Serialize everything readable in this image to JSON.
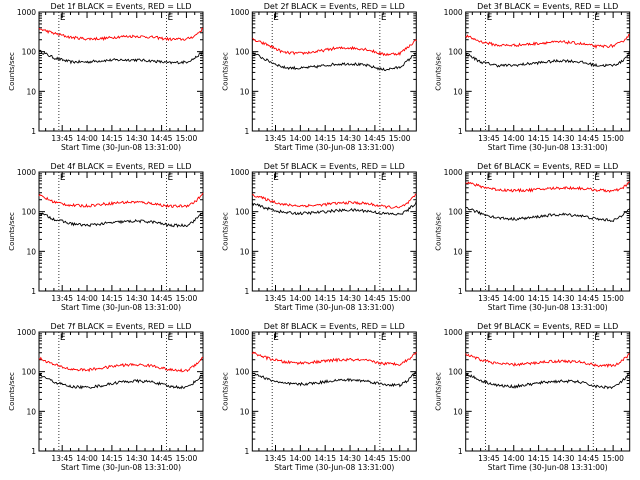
{
  "layout": {
    "rows": 3,
    "cols": 3
  },
  "shared": {
    "xlabel": "Start Time (30-Jun-08 13:31:00)",
    "ylabel": "Counts/sec",
    "xticks": [
      "13:45",
      "14:00",
      "14:15",
      "14:30",
      "14:45",
      "15:00"
    ],
    "yticks": [
      "1",
      "10",
      "100",
      "1000"
    ],
    "marker_label": "E",
    "marker_times": [
      "13:43",
      "14:48"
    ]
  },
  "colors": {
    "events": "#000000",
    "lld": "#ff0000",
    "axis": "#000000",
    "marker": "#000000"
  },
  "chart_data": [
    {
      "type": "line",
      "title": "Det 1f BLACK = Events, RED = LLD",
      "x_range": [
        "13:31",
        "15:10"
      ],
      "yscale": "log",
      "ylim": [
        1,
        1000
      ],
      "grid": false,
      "time_x": [
        "13:31",
        "13:40",
        "13:50",
        "14:00",
        "14:10",
        "14:20",
        "14:30",
        "14:40",
        "14:50",
        "15:00",
        "15:05",
        "15:10"
      ],
      "series": [
        {
          "values": [
            105,
            70,
            55,
            55,
            60,
            62,
            62,
            58,
            52,
            55,
            68,
            100
          ]
        },
        {
          "values": [
            380,
            290,
            230,
            210,
            215,
            240,
            245,
            230,
            205,
            205,
            250,
            380
          ]
        }
      ]
    },
    {
      "type": "line",
      "title": "Det 2f BLACK = Events, RED = LLD",
      "x_range": [
        "13:31",
        "15:10"
      ],
      "yscale": "log",
      "ylim": [
        1,
        1000
      ],
      "grid": false,
      "time_x": [
        "13:31",
        "13:40",
        "13:50",
        "14:00",
        "14:10",
        "14:20",
        "14:30",
        "14:40",
        "14:50",
        "15:00",
        "15:05",
        "15:10"
      ],
      "series": [
        {
          "values": [
            95,
            60,
            40,
            38,
            42,
            48,
            50,
            45,
            35,
            40,
            60,
            95
          ]
        },
        {
          "values": [
            200,
            150,
            95,
            90,
            100,
            120,
            125,
            115,
            85,
            90,
            130,
            200
          ]
        }
      ]
    },
    {
      "type": "line",
      "title": "Det 3f BLACK = Events, RED = LLD",
      "x_range": [
        "13:31",
        "15:10"
      ],
      "yscale": "log",
      "ylim": [
        1,
        1000
      ],
      "grid": false,
      "time_x": [
        "13:31",
        "13:40",
        "13:50",
        "14:00",
        "14:10",
        "14:20",
        "14:30",
        "14:40",
        "14:50",
        "15:00",
        "15:05",
        "15:10"
      ],
      "series": [
        {
          "values": [
            90,
            55,
            45,
            45,
            50,
            55,
            60,
            55,
            45,
            45,
            55,
            95
          ]
        },
        {
          "values": [
            250,
            180,
            145,
            145,
            155,
            170,
            175,
            160,
            135,
            140,
            170,
            270
          ]
        }
      ]
    },
    {
      "type": "line",
      "title": "Det 4f BLACK = Events, RED = LLD",
      "x_range": [
        "13:31",
        "15:10"
      ],
      "yscale": "log",
      "ylim": [
        1,
        1000
      ],
      "grid": false,
      "time_x": [
        "13:31",
        "13:40",
        "13:50",
        "14:00",
        "14:10",
        "14:20",
        "14:30",
        "14:40",
        "14:50",
        "15:00",
        "15:05",
        "15:10"
      ],
      "series": [
        {
          "values": [
            95,
            65,
            50,
            45,
            50,
            55,
            58,
            55,
            45,
            45,
            60,
            100
          ]
        },
        {
          "values": [
            260,
            175,
            145,
            140,
            155,
            170,
            175,
            160,
            135,
            140,
            175,
            280
          ]
        }
      ]
    },
    {
      "type": "line",
      "title": "Det 5f BLACK = Events, RED = LLD",
      "x_range": [
        "13:31",
        "15:10"
      ],
      "yscale": "log",
      "ylim": [
        1,
        1000
      ],
      "grid": false,
      "time_x": [
        "13:31",
        "13:40",
        "13:50",
        "14:00",
        "14:10",
        "14:20",
        "14:30",
        "14:40",
        "14:50",
        "15:00",
        "15:05",
        "15:10"
      ],
      "series": [
        {
          "values": [
            160,
            120,
            95,
            90,
            95,
            105,
            110,
            105,
            90,
            85,
            110,
            170
          ]
        },
        {
          "values": [
            270,
            200,
            150,
            140,
            145,
            160,
            170,
            160,
            135,
            125,
            165,
            270
          ]
        }
      ]
    },
    {
      "type": "line",
      "title": "Det 6f BLACK = Events, RED = LLD",
      "x_range": [
        "13:31",
        "15:10"
      ],
      "yscale": "log",
      "ylim": [
        1,
        1000
      ],
      "grid": false,
      "time_x": [
        "13:31",
        "13:40",
        "13:50",
        "14:00",
        "14:10",
        "14:20",
        "14:30",
        "14:40",
        "14:50",
        "15:00",
        "15:05",
        "15:10"
      ],
      "series": [
        {
          "values": [
            130,
            90,
            70,
            65,
            70,
            80,
            85,
            80,
            65,
            60,
            75,
            130
          ]
        },
        {
          "values": [
            560,
            430,
            360,
            340,
            350,
            380,
            400,
            390,
            350,
            330,
            370,
            560
          ]
        }
      ]
    },
    {
      "type": "line",
      "title": "Det 7f BLACK = Events, RED = LLD",
      "x_range": [
        "13:31",
        "15:10"
      ],
      "yscale": "log",
      "ylim": [
        1,
        1000
      ],
      "grid": false,
      "time_x": [
        "13:31",
        "13:40",
        "13:50",
        "14:00",
        "14:10",
        "14:20",
        "14:30",
        "14:40",
        "14:50",
        "15:00",
        "15:05",
        "15:10"
      ],
      "series": [
        {
          "values": [
            85,
            55,
            42,
            40,
            45,
            55,
            58,
            55,
            42,
            40,
            55,
            85
          ]
        },
        {
          "values": [
            220,
            150,
            115,
            110,
            125,
            145,
            150,
            140,
            110,
            105,
            145,
            230
          ]
        }
      ]
    },
    {
      "type": "line",
      "title": "Det 8f BLACK = Events, RED = LLD",
      "x_range": [
        "13:31",
        "15:10"
      ],
      "yscale": "log",
      "ylim": [
        1,
        1000
      ],
      "grid": false,
      "time_x": [
        "13:31",
        "13:40",
        "13:50",
        "14:00",
        "14:10",
        "14:20",
        "14:30",
        "14:40",
        "14:50",
        "15:00",
        "15:05",
        "15:10"
      ],
      "series": [
        {
          "values": [
            95,
            65,
            50,
            48,
            52,
            60,
            62,
            58,
            48,
            45,
            60,
            100
          ]
        },
        {
          "values": [
            300,
            220,
            175,
            165,
            175,
            195,
            200,
            190,
            160,
            155,
            200,
            300
          ]
        }
      ]
    },
    {
      "type": "line",
      "title": "Det 9f BLACK = Events, RED = LLD",
      "x_range": [
        "13:31",
        "15:10"
      ],
      "yscale": "log",
      "ylim": [
        1,
        1000
      ],
      "grid": false,
      "time_x": [
        "13:31",
        "13:40",
        "13:50",
        "14:00",
        "14:10",
        "14:20",
        "14:30",
        "14:40",
        "14:50",
        "15:00",
        "15:05",
        "15:10"
      ],
      "series": [
        {
          "values": [
            90,
            60,
            45,
            42,
            48,
            55,
            58,
            55,
            42,
            40,
            55,
            90
          ]
        },
        {
          "values": [
            270,
            200,
            160,
            150,
            160,
            180,
            185,
            175,
            145,
            140,
            180,
            280
          ]
        }
      ]
    }
  ]
}
